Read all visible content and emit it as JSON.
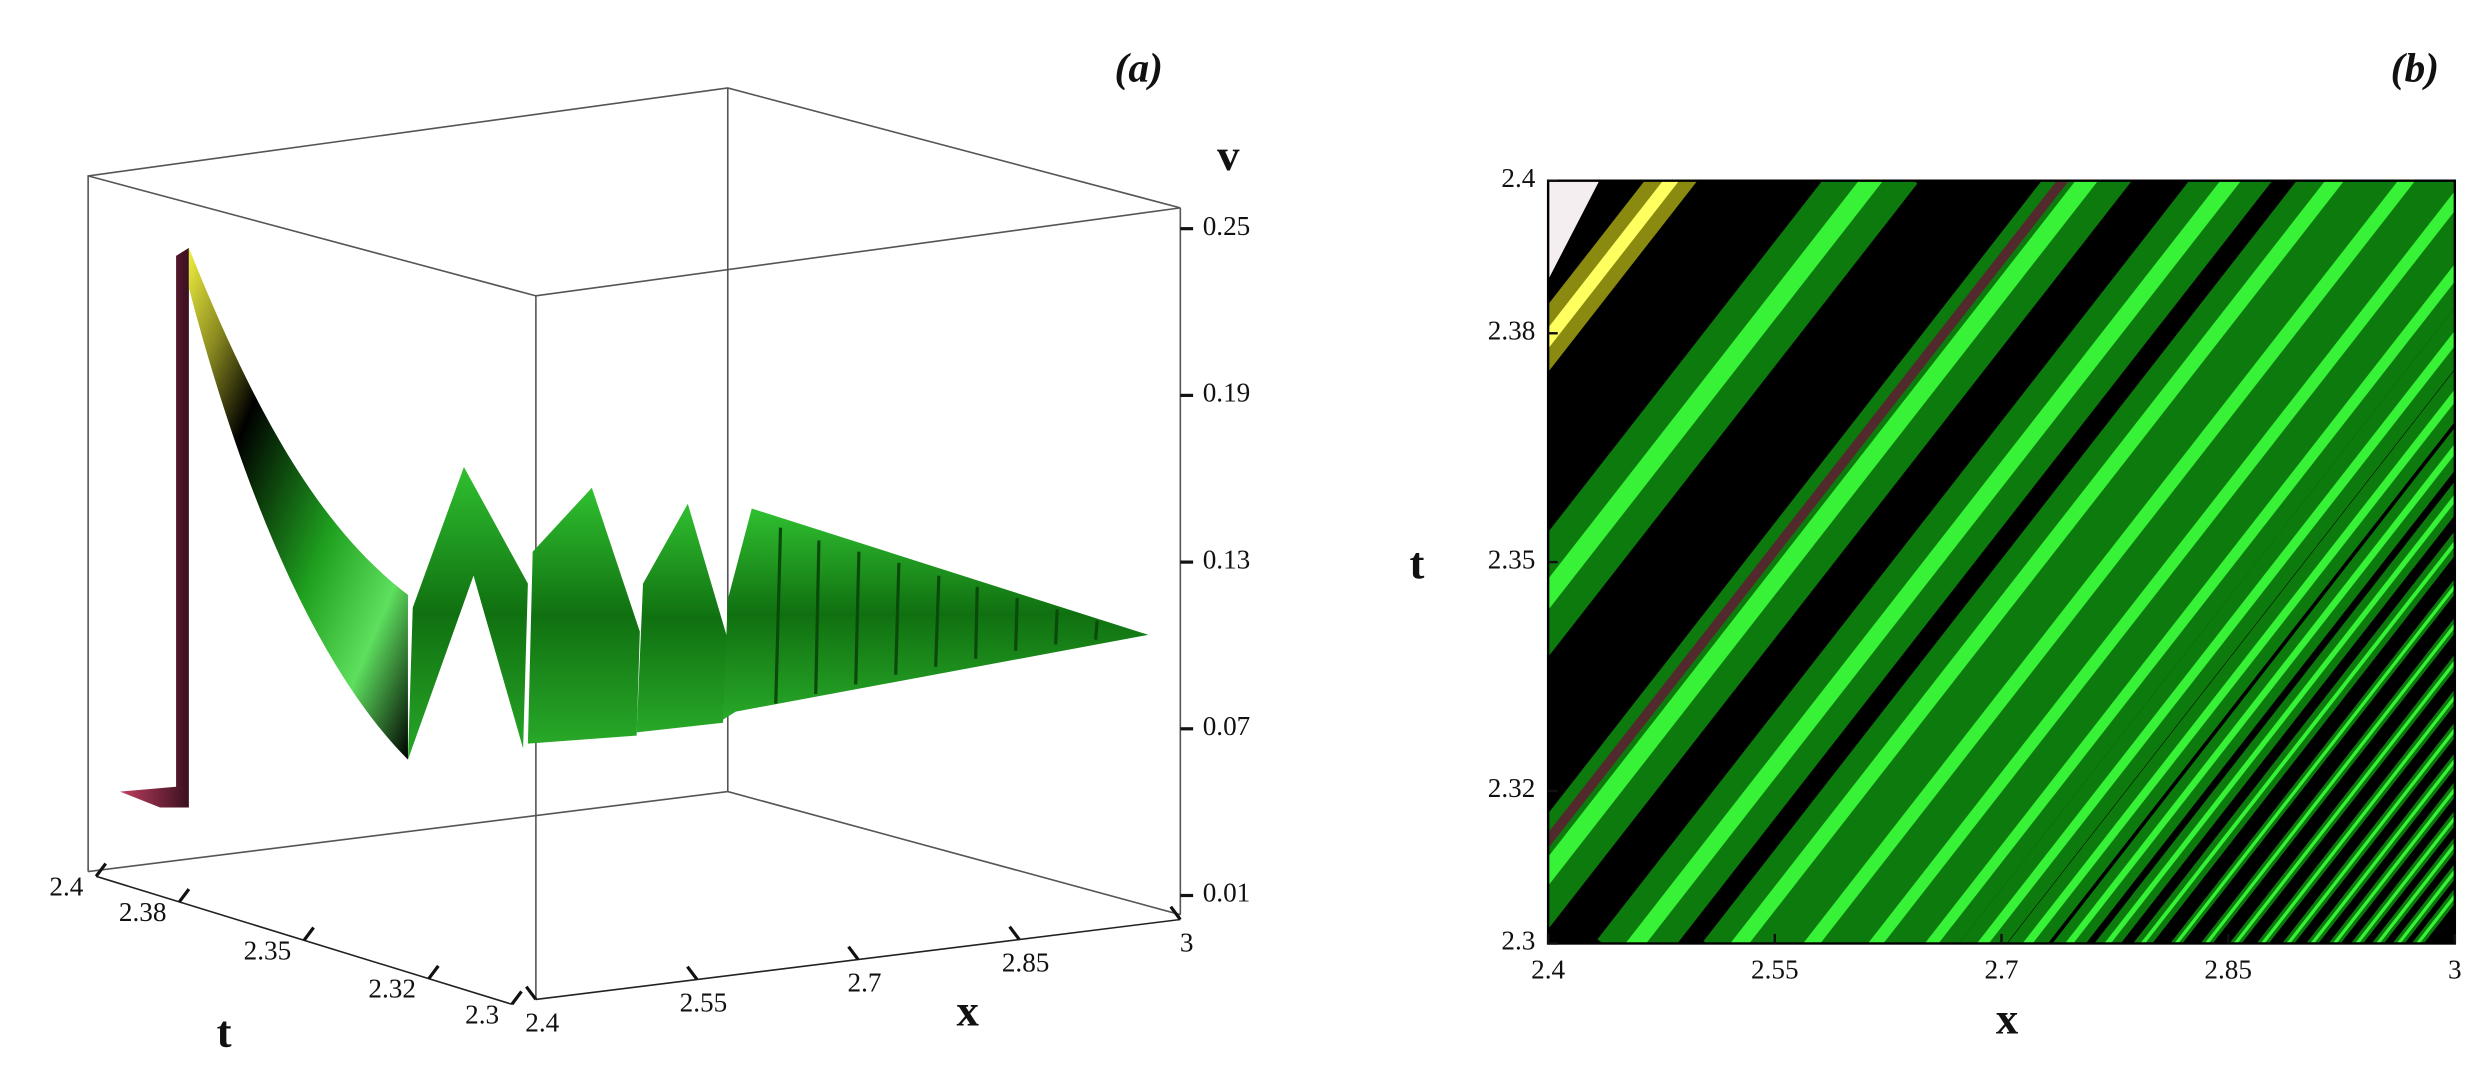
{
  "chart_data": [
    {
      "type": "surface3d",
      "panel_label": "(a)",
      "xlabel": "x",
      "ylabel": "t",
      "zlabel": "v",
      "xlim": [
        2.4,
        3
      ],
      "xticks": [
        2.4,
        2.55,
        2.7,
        2.85,
        3
      ],
      "ylim": [
        2.3,
        2.4
      ],
      "yticks": [
        2.3,
        2.32,
        2.35,
        2.38,
        2.4
      ],
      "zlim": [
        0.01,
        0.25
      ],
      "zticks": [
        0.01,
        0.07,
        0.13,
        0.19,
        0.25
      ]
    },
    {
      "type": "density",
      "panel_label": "(b)",
      "xlabel": "x",
      "ylabel": "t",
      "xlim": [
        2.4,
        3
      ],
      "xticks": [
        2.4,
        2.55,
        2.7,
        2.85,
        3
      ],
      "ylim": [
        2.3,
        2.4
      ],
      "yticks": [
        2.3,
        2.32,
        2.35,
        2.38,
        2.4
      ]
    }
  ]
}
